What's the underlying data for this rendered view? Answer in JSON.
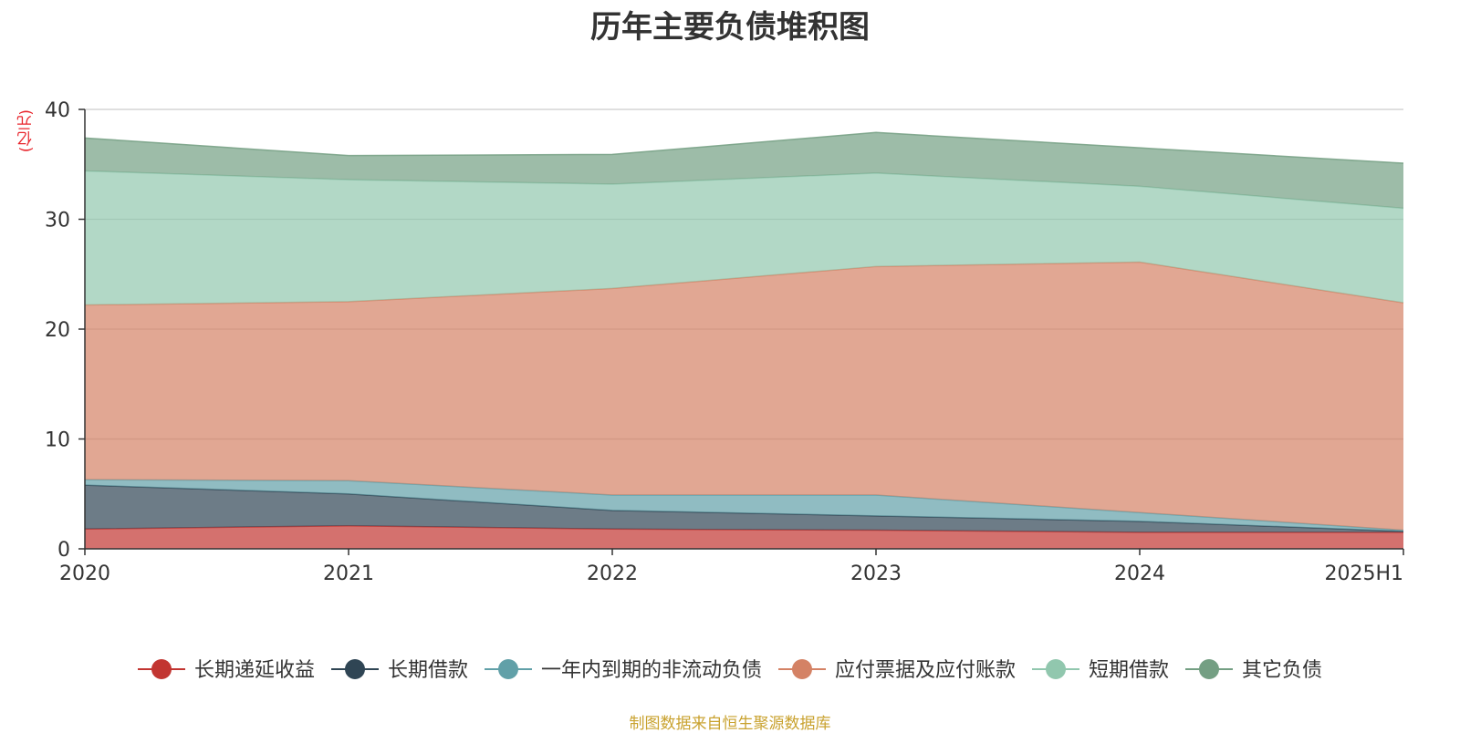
{
  "chart_data": {
    "type": "area",
    "stacked": true,
    "title": "历年主要负债堆积图",
    "unit_label": "(亿元)",
    "source_note": "制图数据来自恒生聚源数据库",
    "categories": [
      "2020",
      "2021",
      "2022",
      "2023",
      "2024",
      "2025H1"
    ],
    "ylim": [
      0,
      40
    ],
    "yticks": [
      "0",
      "10",
      "20",
      "30",
      "40"
    ],
    "grid": true,
    "legend_position": "bottom",
    "series": [
      {
        "name": "长期递延收益",
        "color": "#c23531",
        "values": [
          1.8,
          2.1,
          1.8,
          1.7,
          1.5,
          1.5
        ]
      },
      {
        "name": "长期借款",
        "color": "#2f4554",
        "values": [
          4.0,
          2.9,
          1.7,
          1.3,
          1.0,
          0.1
        ]
      },
      {
        "name": "一年内到期的非流动负债",
        "color": "#61a0a8",
        "values": [
          0.5,
          1.2,
          1.4,
          1.9,
          0.8,
          0.1
        ]
      },
      {
        "name": "应付票据及应付账款",
        "color": "#d48265",
        "values": [
          15.9,
          16.3,
          18.8,
          20.8,
          22.8,
          20.7
        ]
      },
      {
        "name": "短期借款",
        "color": "#91c7ae",
        "values": [
          12.2,
          11.1,
          9.5,
          8.5,
          6.9,
          8.6
        ]
      },
      {
        "name": "其它负债",
        "color": "#749f83",
        "values": [
          3.0,
          2.2,
          2.7,
          3.7,
          3.5,
          4.1
        ]
      }
    ]
  }
}
